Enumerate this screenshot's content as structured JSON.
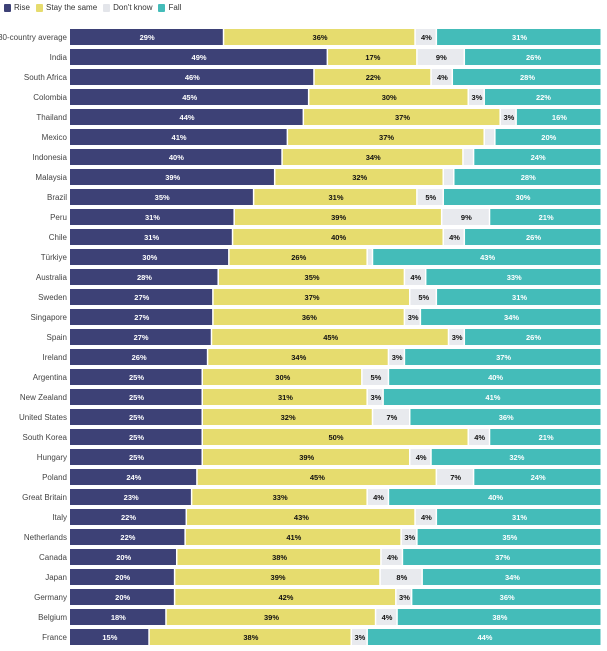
{
  "chart_data": {
    "type": "bar",
    "orientation": "horizontal",
    "stacked": true,
    "legend_position": "top-left",
    "grid": false,
    "series": [
      {
        "name": "Rise",
        "color": "#3d4176",
        "values": [
          29,
          49,
          46,
          45,
          44,
          41,
          40,
          39,
          35,
          31,
          31,
          30,
          28,
          27,
          27,
          27,
          26,
          25,
          25,
          25,
          25,
          25,
          24,
          23,
          22,
          22,
          20,
          20,
          20,
          18,
          15
        ]
      },
      {
        "name": "Stay the same",
        "color": "#e6dc6e",
        "values": [
          36,
          17,
          22,
          30,
          37,
          37,
          34,
          32,
          31,
          39,
          40,
          26,
          35,
          37,
          36,
          45,
          34,
          30,
          31,
          32,
          50,
          39,
          45,
          33,
          43,
          41,
          38,
          39,
          42,
          39,
          38
        ]
      },
      {
        "name": "Don't know",
        "color": "#e8eaee",
        "values": [
          4,
          9,
          4,
          3,
          3,
          2,
          2,
          2,
          5,
          9,
          4,
          1,
          4,
          5,
          3,
          3,
          3,
          5,
          3,
          7,
          4,
          4,
          7,
          4,
          4,
          3,
          4,
          8,
          3,
          4,
          3
        ]
      },
      {
        "name": "Fall",
        "color": "#44bcb9",
        "values": [
          31,
          26,
          28,
          22,
          16,
          20,
          24,
          28,
          30,
          21,
          26,
          43,
          33,
          31,
          34,
          26,
          37,
          40,
          41,
          36,
          21,
          32,
          24,
          40,
          31,
          35,
          37,
          34,
          36,
          38,
          44
        ]
      }
    ],
    "categories": [
      "30-country average",
      "India",
      "South Africa",
      "Colombia",
      "Thailand",
      "Mexico",
      "Indonesia",
      "Malaysia",
      "Brazil",
      "Peru",
      "Chile",
      "Türkiye",
      "Australia",
      "Sweden",
      "Singapore",
      "Spain",
      "Ireland",
      "Argentina",
      "New Zealand",
      "United States",
      "South Korea",
      "Hungary",
      "Poland",
      "Great Britain",
      "Italy",
      "Netherlands",
      "Canada",
      "Japan",
      "Germany",
      "Belgium",
      "France"
    ],
    "unlabeled_dont_know": [
      "Mexico",
      "Indonesia",
      "Malaysia",
      "Türkiye"
    ]
  }
}
